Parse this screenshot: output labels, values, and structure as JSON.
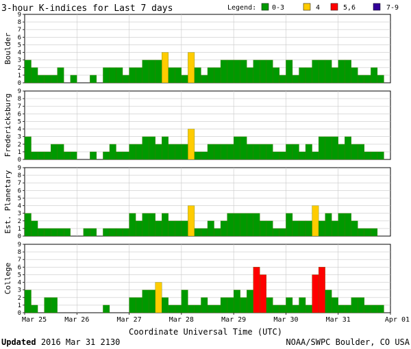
{
  "title": "3-hour K-indices for Last 7 days",
  "legend": {
    "label": "Legend:",
    "items": [
      {
        "label": "0-3",
        "color": "#009900"
      },
      {
        "label": "4",
        "color": "#ffcc00"
      },
      {
        "label": "5,6",
        "color": "#ff0000"
      },
      {
        "label": "7-9",
        "color": "#330099"
      }
    ]
  },
  "footer": {
    "updated_word": "Updated",
    "updated_value": "2016 Mar 31 2130",
    "credit": "NOAA/SWPC Boulder, CO USA"
  },
  "chart_data": {
    "type": "bar",
    "xlabel": "Coordinate Universal Time (UTC)",
    "x_ticks": [
      "Mar 25",
      "Mar 26",
      "Mar 27",
      "Mar 28",
      "Mar 29",
      "Mar 30",
      "Mar 31",
      "Apr 01"
    ],
    "ylim": [
      0,
      9
    ],
    "y_ticks": [
      0,
      1,
      2,
      3,
      4,
      5,
      6,
      7,
      8,
      9
    ],
    "grid": true,
    "bars_per_day": 8,
    "series": [
      {
        "name": "Boulder",
        "values": [
          3,
          2,
          1,
          1,
          1,
          2,
          0,
          1,
          0,
          0,
          1,
          0,
          2,
          2,
          2,
          1,
          2,
          2,
          3,
          3,
          3,
          4,
          2,
          2,
          1,
          4,
          2,
          1,
          2,
          2,
          3,
          3,
          3,
          3,
          2,
          3,
          3,
          3,
          2,
          1,
          3,
          1,
          2,
          2,
          3,
          3,
          3,
          2,
          3,
          3,
          2,
          1,
          1,
          2,
          1,
          0
        ]
      },
      {
        "name": "Fredericksburg",
        "values": [
          3,
          1,
          1,
          1,
          2,
          2,
          1,
          1,
          0,
          0,
          1,
          0,
          1,
          2,
          1,
          1,
          2,
          2,
          3,
          3,
          2,
          3,
          2,
          2,
          2,
          4,
          1,
          1,
          2,
          2,
          2,
          2,
          3,
          3,
          2,
          2,
          2,
          2,
          1,
          1,
          2,
          2,
          1,
          2,
          1,
          3,
          3,
          3,
          2,
          3,
          2,
          2,
          1,
          1,
          1,
          0
        ]
      },
      {
        "name": "Est. Planetary",
        "values": [
          3,
          2,
          1,
          1,
          1,
          1,
          1,
          0,
          0,
          1,
          1,
          0,
          1,
          1,
          1,
          1,
          3,
          2,
          3,
          3,
          2,
          3,
          2,
          2,
          2,
          4,
          1,
          1,
          2,
          1,
          2,
          3,
          3,
          3,
          3,
          3,
          2,
          2,
          1,
          1,
          3,
          2,
          2,
          2,
          4,
          2,
          3,
          2,
          3,
          3,
          2,
          1,
          1,
          1,
          0,
          0
        ]
      },
      {
        "name": "College",
        "values": [
          3,
          1,
          0,
          2,
          2,
          0,
          0,
          0,
          0,
          0,
          0,
          0,
          1,
          0,
          0,
          0,
          2,
          2,
          3,
          3,
          4,
          2,
          1,
          1,
          3,
          1,
          1,
          2,
          1,
          1,
          2,
          2,
          3,
          2,
          3,
          6,
          5,
          2,
          1,
          1,
          2,
          1,
          2,
          1,
          5,
          6,
          3,
          2,
          1,
          1,
          2,
          2,
          1,
          1,
          1,
          0
        ]
      }
    ]
  }
}
